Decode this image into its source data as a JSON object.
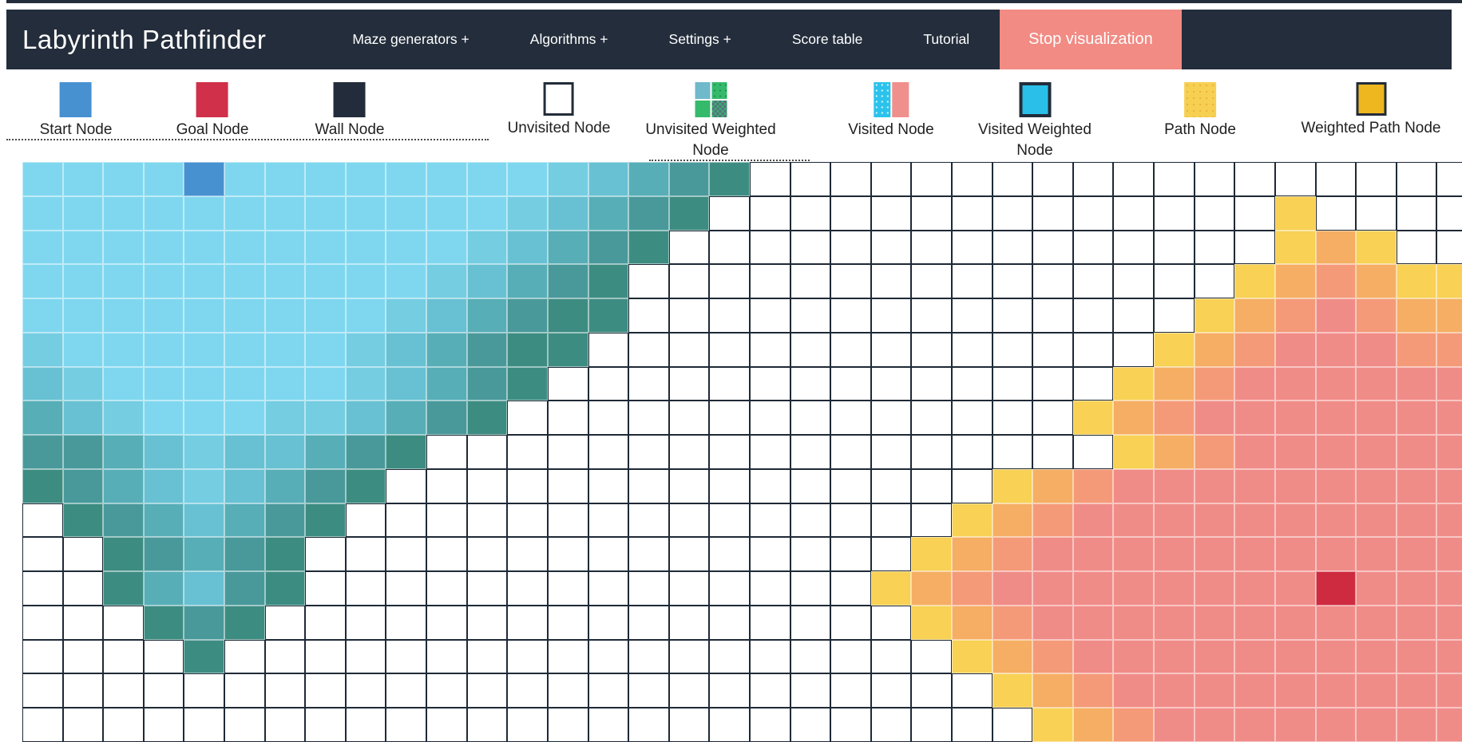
{
  "navbar": {
    "title": "Labyrinth Pathfinder",
    "items": [
      {
        "label": "Maze generators +"
      },
      {
        "label": "Algorithms +"
      },
      {
        "label": "Settings +"
      },
      {
        "label": "Score table"
      },
      {
        "label": "Tutorial"
      }
    ],
    "stop_button_label": "Stop visualization",
    "colors": {
      "bg": "#232d3b",
      "stop_bg": "#f18b84",
      "text": "#ffffff"
    }
  },
  "legend": {
    "items": [
      {
        "id": "start",
        "label": "Start Node",
        "color": "#4791d0"
      },
      {
        "id": "goal",
        "label": "Goal Node",
        "color": "#d03049"
      },
      {
        "id": "wall",
        "label": "Wall Node",
        "color": "#222c3a"
      },
      {
        "id": "unvisited",
        "label": "Unvisited Node",
        "color": "#ffffff"
      },
      {
        "id": "unvisited-weighted",
        "label": "Unvisited Weighted Node",
        "color": "#35ba6b"
      },
      {
        "id": "visited",
        "label": "Visited Node",
        "color": "#2bc3ec"
      },
      {
        "id": "visited-weighted",
        "label": "Visited Weighted Node",
        "color": "#29bfe8"
      },
      {
        "id": "path",
        "label": "Path Node",
        "color": "#f7d052"
      },
      {
        "id": "weighted-path",
        "label": "Weighted Path Node",
        "color": "#efb71f"
      }
    ]
  },
  "grid": {
    "cols": 36,
    "rows": 17,
    "start": {
      "col": 4,
      "row": 0
    },
    "goal": {
      "col": 32,
      "row": 12
    },
    "palette": {
      ".": "#ffffff",
      "0": "#7fd7ef",
      "1": "#75cde2",
      "2": "#68c1d3",
      "3": "#57aeb7",
      "4": "#49999b",
      "5": "#3d8c82",
      "Y": "#f8d155",
      "P": "#f5ae63",
      "o": "#f49a78",
      "S": "#f08c88",
      "B": "#4791d0",
      "G": "#ce2b40"
    },
    "cells": [
      "0000B0000000012345..................",
      "00000000000012345..............Y....",
      "0000000000012345...............YPY..",
      "000000000012345...............YPoPYY",
      "000000000123455..............YPoSoPP",
      "10000000123455..............YPoSSSoo",
      "2100000012345..............YPoSSSSSS",
      "321000112345..............YPoSSSSSSS",
      "4432122345.................YPoSSSSSSSS",
      "543212345...............YPoSSSSSSSSS",
      ".5432345...............YPoSSSSSSSSSS",
      "..54345...............YPoSSSSSSSSSSS",
      "..53245..............YPoSSSSSSSSGSSS",
      "...545................YPoSSSSSSSSSSS",
      "....5..................YPoSSSSSSSSSS",
      "........................YPoSSSSSSSSS",
      ".........................YPoSSSSSSSS"
    ]
  }
}
